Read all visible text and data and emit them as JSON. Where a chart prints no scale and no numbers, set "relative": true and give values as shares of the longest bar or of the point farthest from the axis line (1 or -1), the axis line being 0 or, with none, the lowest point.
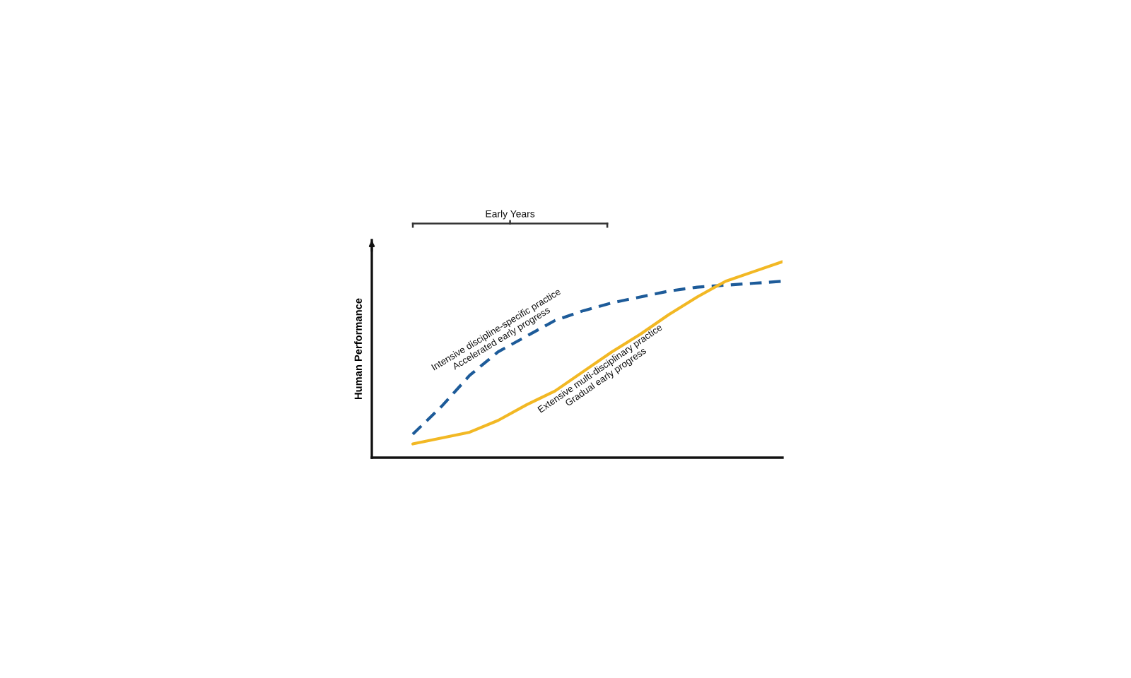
{
  "chart_data": {
    "type": "line",
    "relative": true,
    "ylabel": "Human Performance",
    "annotations": [
      "Early Years"
    ],
    "categories": [
      null,
      null,
      null,
      null,
      null,
      null,
      null,
      null,
      null,
      null,
      null,
      null,
      null,
      null
    ],
    "series": [
      {
        "name": "Intensive discipline-specific practice\nAccelerated early progress",
        "color": "#1d5b99",
        "line_style": "dashed",
        "values": [
          0.12,
          0.26,
          0.42,
          0.54,
          0.62,
          0.7,
          0.75,
          0.79,
          0.82,
          0.85,
          0.87,
          0.88,
          0.89,
          0.9
        ]
      },
      {
        "name": "Extensive multi-disciplinary practice\nGradual early progress",
        "color": "#f2b824",
        "line_style": "solid",
        "values": [
          0.07,
          0.1,
          0.13,
          0.19,
          0.27,
          0.34,
          0.44,
          0.54,
          0.63,
          0.73,
          0.82,
          0.9,
          0.95,
          1
        ]
      }
    ],
    "grid": false,
    "legend": false,
    "marker": "none"
  }
}
